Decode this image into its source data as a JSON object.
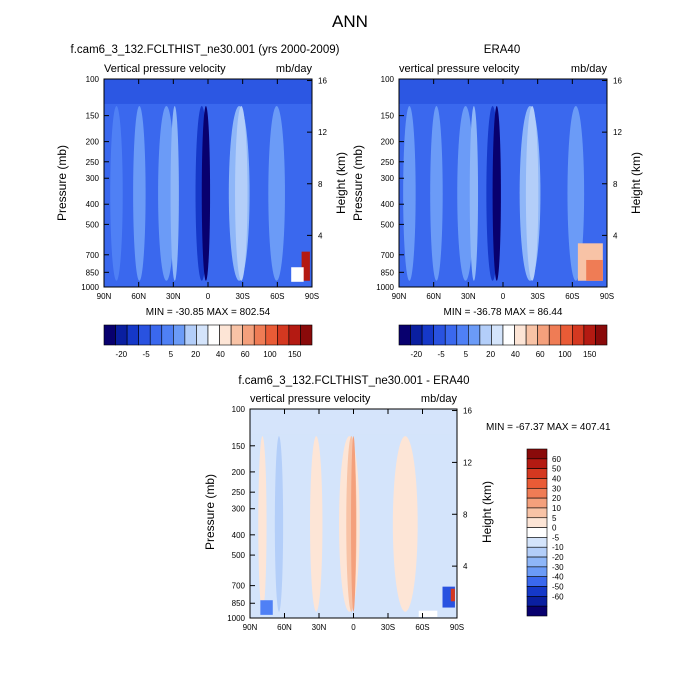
{
  "figure": {
    "title": "ANN",
    "colors": {
      "blues": [
        "#08006e",
        "#0a1fa0",
        "#1538c8",
        "#2952e0",
        "#3a68ee",
        "#4f80f5",
        "#6b9bf7",
        "#8eb6f8",
        "#b3cef9",
        "#d4e4fb"
      ],
      "reds": [
        "#fde5d6",
        "#f8c3a6",
        "#f4a07c",
        "#ef7c55",
        "#e95b36",
        "#d43820",
        "#b41a12",
        "#8a0a0a"
      ]
    }
  },
  "chart_data": [
    {
      "type": "heatmap",
      "panel": "model",
      "title": "f.cam6_3_132.FCLTHIST_ne30.001 (yrs 2000-2009)",
      "left_label": "Vertical pressure velocity",
      "right_label": "mb/day",
      "ylabel": "Pressure (mb)",
      "y2label": "Height (km)",
      "x_ticks": [
        "90N",
        "60N",
        "30N",
        "0",
        "30S",
        "60S",
        "90S"
      ],
      "x_values": [
        90,
        60,
        30,
        0,
        -30,
        -60,
        -90
      ],
      "y_ticks": [
        "100",
        "150",
        "200",
        "250",
        "300",
        "400",
        "500",
        "700",
        "850",
        "1000"
      ],
      "y_values": [
        100,
        150,
        200,
        250,
        300,
        400,
        500,
        700,
        850,
        1000
      ],
      "y2_ticks": [
        "4",
        "8",
        "12",
        "16"
      ],
      "y2_values": [
        4,
        8,
        12,
        16
      ],
      "stats": "MIN = -30.85  MAX = 802.54",
      "colorbar": {
        "labels": [
          "-20",
          "-5",
          "5",
          "20",
          "40",
          "60",
          "100",
          "150"
        ],
        "levels": [
          -30,
          -25,
          -20,
          -15,
          -10,
          -5,
          0,
          5,
          10,
          20,
          30,
          40,
          50,
          60,
          80,
          100,
          120,
          150
        ]
      }
    },
    {
      "type": "heatmap",
      "panel": "obs",
      "title": "ERA40",
      "left_label": "vertical pressure velocity",
      "right_label": "mb/day",
      "ylabel": "Pressure (mb)",
      "y2label": "Height (km)",
      "x_ticks": [
        "90N",
        "60N",
        "30N",
        "0",
        "30S",
        "60S",
        "90S"
      ],
      "x_values": [
        90,
        60,
        30,
        0,
        -30,
        -60,
        -90
      ],
      "y_ticks": [
        "100",
        "150",
        "200",
        "250",
        "300",
        "400",
        "500",
        "700",
        "850",
        "1000"
      ],
      "y_values": [
        100,
        150,
        200,
        250,
        300,
        400,
        500,
        700,
        850,
        1000
      ],
      "y2_ticks": [
        "4",
        "8",
        "12",
        "16"
      ],
      "y2_values": [
        4,
        8,
        12,
        16
      ],
      "stats": "MIN = -36.78  MAX =  86.44",
      "colorbar": {
        "labels": [
          "-20",
          "-5",
          "5",
          "20",
          "40",
          "60",
          "100",
          "150"
        ],
        "levels": [
          -30,
          -25,
          -20,
          -15,
          -10,
          -5,
          0,
          5,
          10,
          20,
          30,
          40,
          50,
          60,
          80,
          100,
          120,
          150
        ]
      }
    },
    {
      "type": "heatmap",
      "panel": "diff",
      "title": "f.cam6_3_132.FCLTHIST_ne30.001 - ERA40",
      "left_label": "vertical pressure velocity",
      "right_label": "mb/day",
      "ylabel": "Pressure (mb)",
      "y2label": "Height (km)",
      "x_ticks": [
        "90N",
        "60N",
        "30N",
        "0",
        "30S",
        "60S",
        "90S"
      ],
      "x_values": [
        90,
        60,
        30,
        0,
        -30,
        -60,
        -90
      ],
      "y_ticks": [
        "100",
        "150",
        "200",
        "250",
        "300",
        "400",
        "500",
        "700",
        "850",
        "1000"
      ],
      "y_values": [
        100,
        150,
        200,
        250,
        300,
        400,
        500,
        700,
        850,
        1000
      ],
      "y2_ticks": [
        "4",
        "8",
        "12",
        "16"
      ],
      "y2_values": [
        4,
        8,
        12,
        16
      ],
      "stats": "MIN = -67.37  MAX = 407.41",
      "colorbar": {
        "labels": [
          "60",
          "50",
          "40",
          "30",
          "20",
          "10",
          "5",
          "0",
          "-5",
          "-10",
          "-20",
          "-30",
          "-40",
          "-50",
          "-60"
        ],
        "levels": [
          60,
          50,
          40,
          30,
          20,
          10,
          5,
          0,
          -5,
          -10,
          -20,
          -30,
          -40,
          -50,
          -60
        ]
      }
    }
  ]
}
